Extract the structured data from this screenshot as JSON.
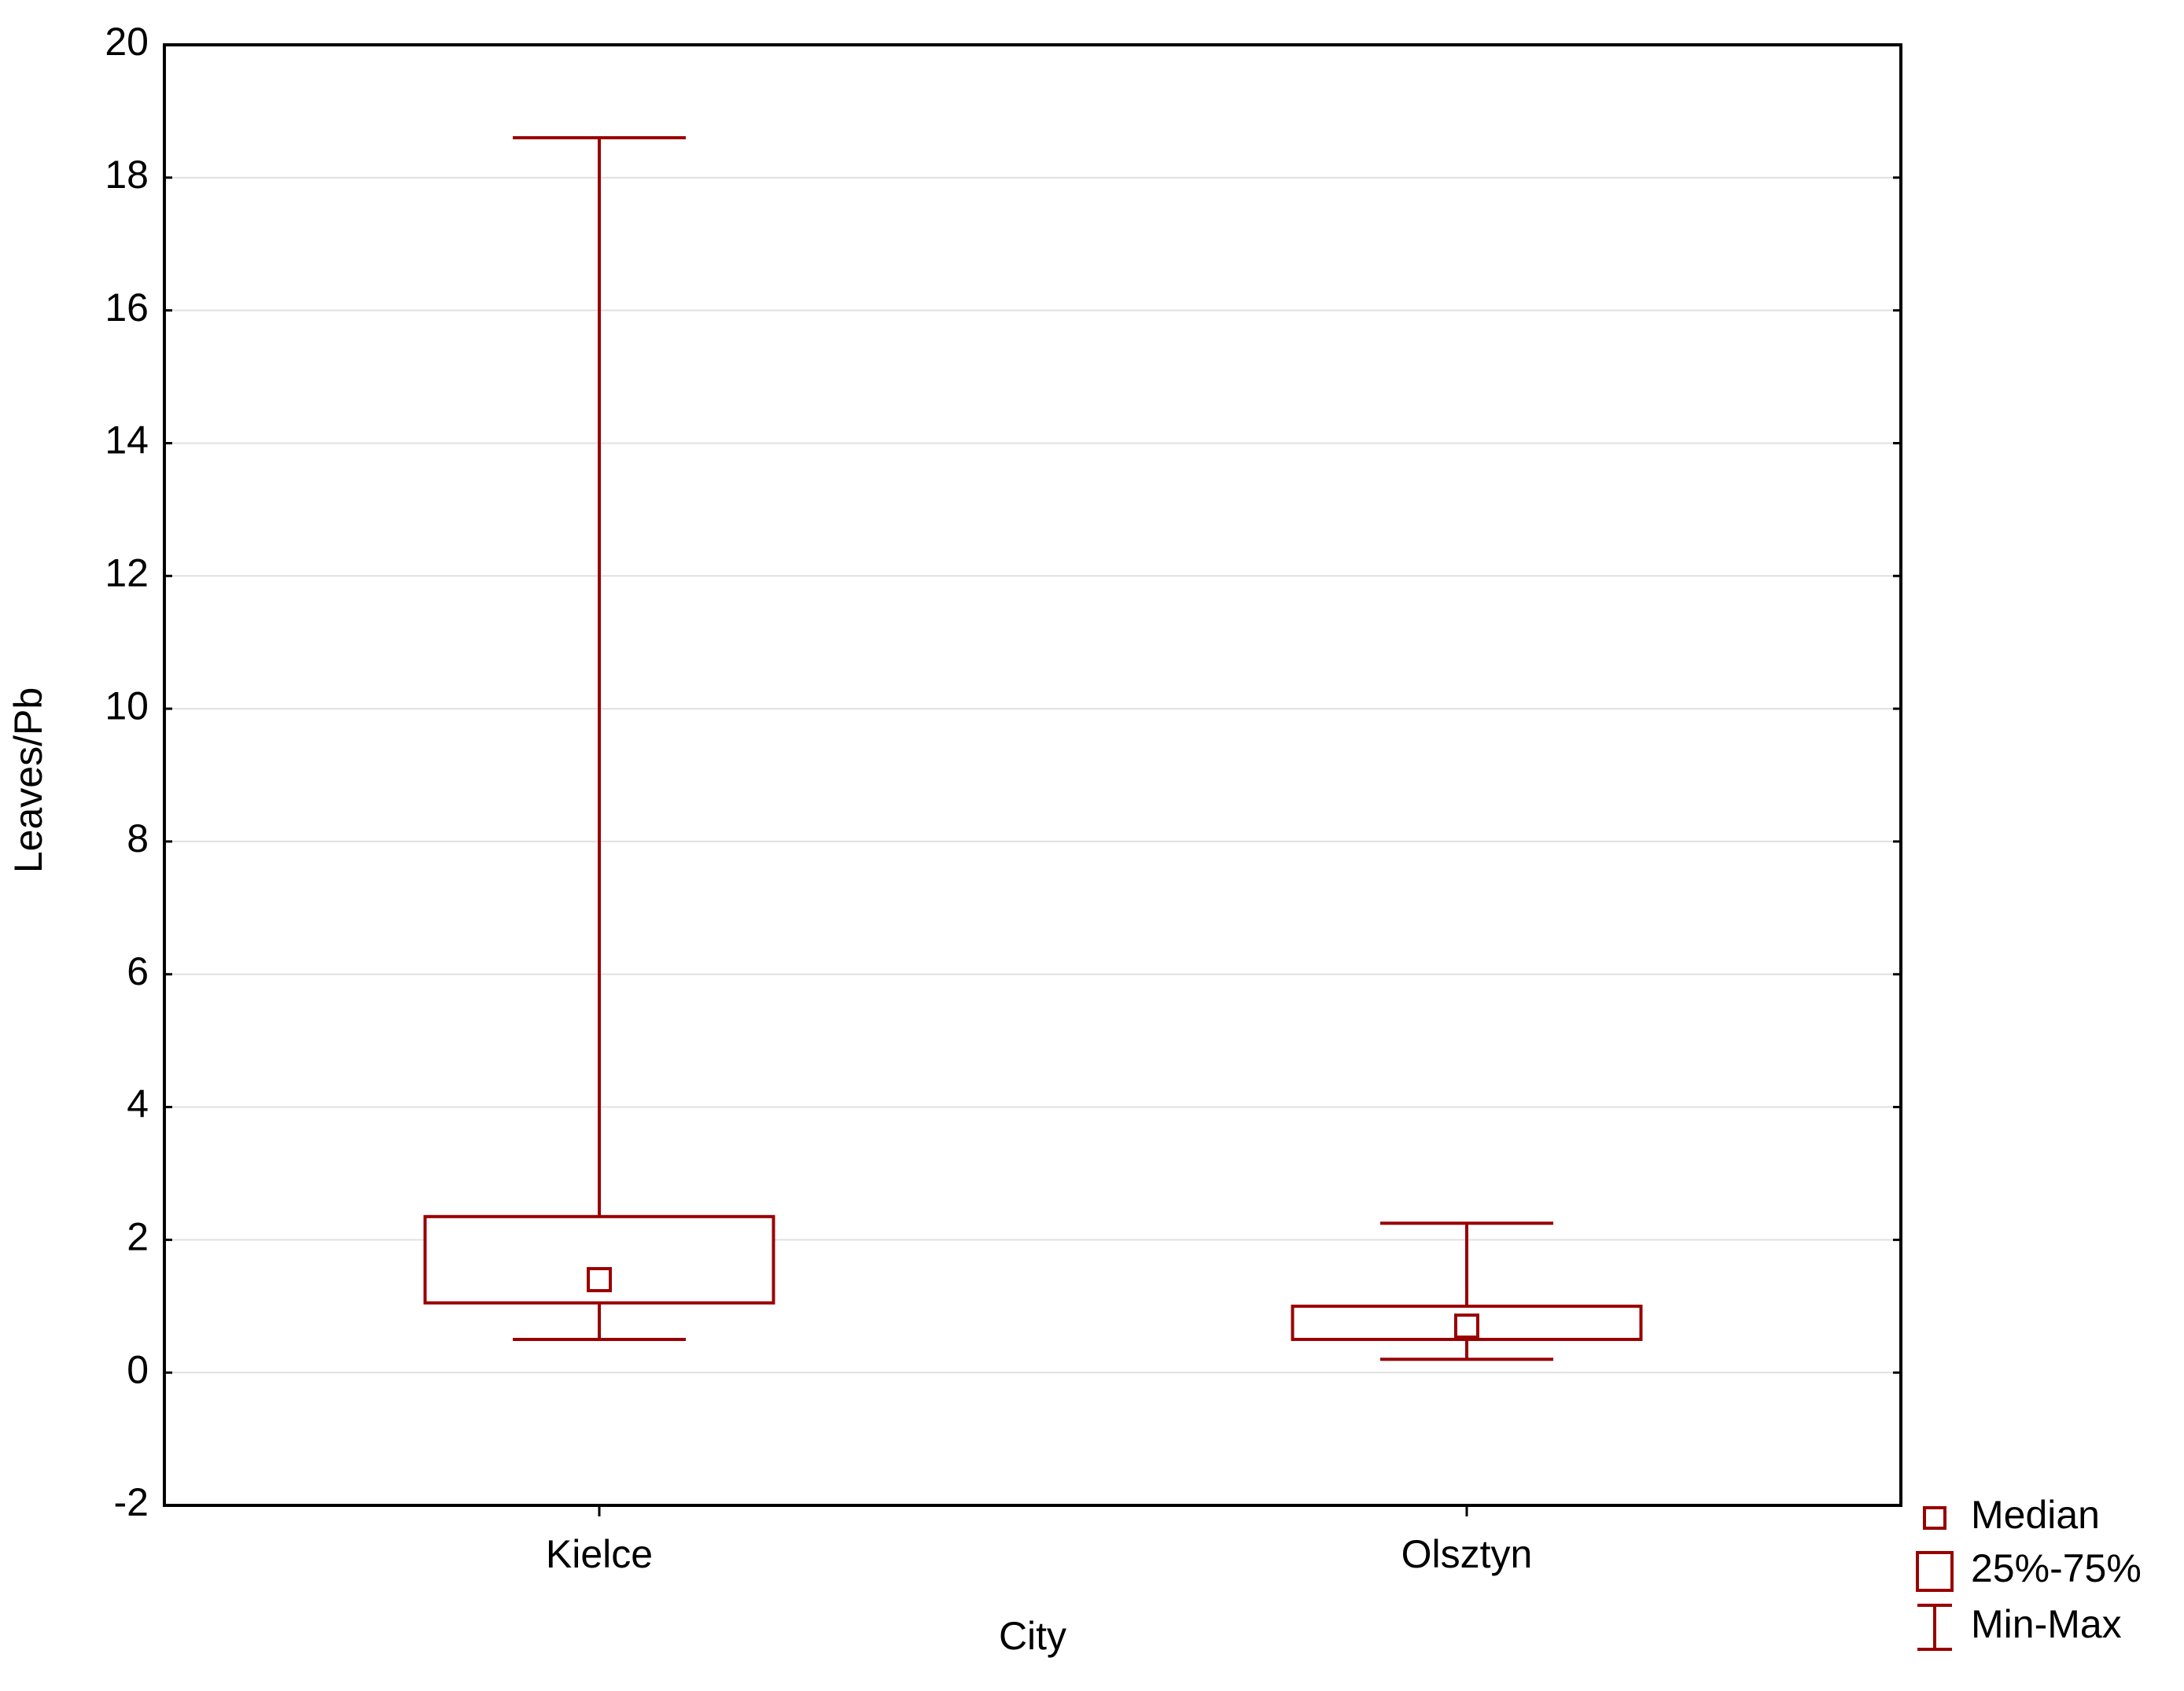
{
  "chart_data": {
    "type": "box",
    "x_label": "City",
    "y_label": "Leaves/Pb",
    "categories": [
      "Kielce",
      "Olsztyn"
    ],
    "min": [
      0.5,
      0.2
    ],
    "q1": [
      1.05,
      0.5
    ],
    "median": [
      1.4,
      0.7
    ],
    "q3": [
      2.35,
      1.0
    ],
    "max": [
      18.6,
      2.25
    ],
    "color": "#990000",
    "ylim": [
      -2,
      20
    ],
    "yticks": [
      -2,
      0,
      2,
      4,
      6,
      8,
      10,
      12,
      14,
      16,
      18,
      20
    ],
    "grid": true,
    "legend": [
      "Median",
      "25%-75%",
      "Min-Max"
    ],
    "legend_position": "bottom-right"
  }
}
